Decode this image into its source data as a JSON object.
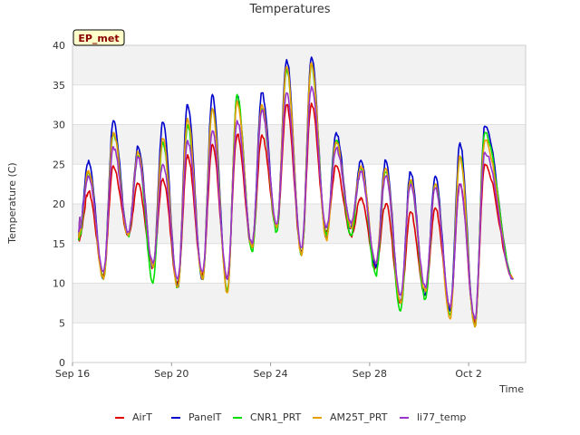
{
  "chart_data": {
    "type": "line",
    "title": "Temperatures",
    "xlabel": "Time",
    "ylabel": "Temperature (C)",
    "badge": "EP_met",
    "ylim": [
      0,
      40
    ],
    "yticks": [
      0,
      5,
      10,
      15,
      20,
      25,
      30,
      35,
      40
    ],
    "xlim": [
      0,
      18.3
    ],
    "xticks": [
      {
        "value": 0,
        "label": "Sep 16"
      },
      {
        "value": 4,
        "label": "Sep 20"
      },
      {
        "value": 8,
        "label": "Sep 24"
      },
      {
        "value": 12,
        "label": "Sep 28"
      },
      {
        "value": 16,
        "label": "Oct 2"
      }
    ],
    "grid": true,
    "legend_position": "bottom",
    "colors": {
      "AirT": "#dd0000",
      "PanelT": "#0000cc",
      "CNR1_PRT": "#00e000",
      "AM25T_PRT": "#e69f00",
      "li77_temp": "#9933cc"
    },
    "day_extremes": {
      "x_start": 0.3,
      "start_value": 18.3,
      "min_phase": 0.25,
      "max_phase": 0.65,
      "end_x": 17.8,
      "end_value": 10.5,
      "series": [
        {
          "name": "AirT",
          "mins": [
            15.5,
            11.0,
            16.0,
            12.0,
            10.0,
            11.0,
            10.5,
            14.5,
            17.0,
            14.0,
            16.5,
            16.0,
            12.0,
            7.5,
            8.5,
            7.0,
            5.0
          ],
          "maxs": [
            21.5,
            24.8,
            22.5,
            23.2,
            26.2,
            27.5,
            28.7,
            28.7,
            32.5,
            32.7,
            24.8,
            20.8,
            20.0,
            19.0,
            19.5,
            22.5,
            25.0
          ]
        },
        {
          "name": "PanelT",
          "mins": [
            16.0,
            10.5,
            16.0,
            12.0,
            9.5,
            10.5,
            9.0,
            14.5,
            17.0,
            13.5,
            15.8,
            17.0,
            12.0,
            7.5,
            8.5,
            6.5,
            4.5
          ],
          "maxs": [
            25.5,
            30.5,
            27.2,
            30.3,
            32.5,
            33.8,
            33.5,
            34.0,
            38.2,
            38.5,
            29.0,
            25.5,
            25.5,
            24.0,
            23.5,
            27.7,
            29.8
          ]
        },
        {
          "name": "CNR1_PRT",
          "mins": [
            15.5,
            10.5,
            16.0,
            10.0,
            9.5,
            10.5,
            9.0,
            14.0,
            16.5,
            13.5,
            16.0,
            16.0,
            11.0,
            6.5,
            8.0,
            6.0,
            4.5
          ],
          "maxs": [
            24.0,
            29.0,
            26.0,
            27.8,
            30.0,
            32.0,
            33.8,
            32.0,
            37.0,
            37.5,
            28.0,
            24.5,
            24.0,
            23.0,
            22.5,
            26.0,
            29.0
          ]
        },
        {
          "name": "AM25T_PRT",
          "mins": [
            16.0,
            10.5,
            16.0,
            12.0,
            9.5,
            10.5,
            8.8,
            14.5,
            17.0,
            13.5,
            15.5,
            17.0,
            12.5,
            7.5,
            9.0,
            5.5,
            4.5
          ],
          "maxs": [
            24.2,
            29.0,
            26.5,
            28.2,
            30.8,
            32.0,
            33.0,
            32.5,
            37.3,
            37.8,
            27.8,
            24.8,
            24.5,
            23.0,
            22.5,
            26.0,
            28.0
          ]
        },
        {
          "name": "li77_temp",
          "mins": [
            16.5,
            11.5,
            16.5,
            12.5,
            10.5,
            11.5,
            10.5,
            15.0,
            17.5,
            14.5,
            17.0,
            17.5,
            12.5,
            8.5,
            9.5,
            7.0,
            5.5
          ],
          "maxs": [
            23.5,
            27.2,
            25.8,
            25.0,
            28.0,
            29.2,
            30.5,
            31.8,
            34.0,
            34.8,
            27.0,
            24.0,
            23.5,
            22.5,
            22.0,
            22.5,
            26.5
          ]
        }
      ]
    }
  }
}
